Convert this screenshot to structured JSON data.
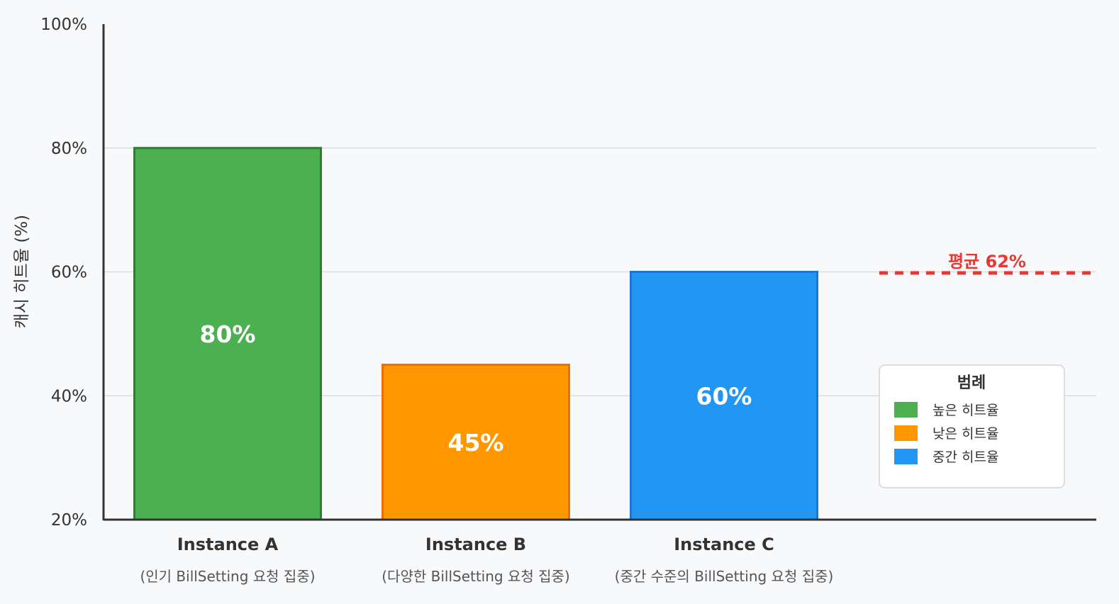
{
  "chart_data": {
    "type": "bar",
    "ylabel": "캐시 히트율 (%)",
    "ylim": [
      20,
      100
    ],
    "y_ticks": [
      20,
      40,
      60,
      80,
      100
    ],
    "y_tick_labels": [
      "20%",
      "40%",
      "60%",
      "80%",
      "100%"
    ],
    "grid": true,
    "categories": [
      "Instance A",
      "Instance B",
      "Instance C"
    ],
    "category_sublabels": [
      "(인기 BillSetting 요청 집중)",
      "(다양한 BillSetting 요청 집중)",
      "(중간 수준의 BillSetting 요청 집중)"
    ],
    "values": [
      80,
      45,
      60
    ],
    "data_labels": [
      "80%",
      "45%",
      "60%"
    ],
    "bar_colors": [
      "#4caf50",
      "#ff9800",
      "#2196f3"
    ],
    "bar_border_colors": [
      "#2e7d32",
      "#ef6c00",
      "#1976d2"
    ],
    "reference_line": {
      "label": "평균 62%",
      "value": 62,
      "color": "#e53935",
      "style": "dashed"
    },
    "legend": {
      "title": "범례",
      "placement": "right",
      "entries": [
        {
          "label": "높은 히트율",
          "color": "#4caf50"
        },
        {
          "label": "낮은 히트율",
          "color": "#ff9800"
        },
        {
          "label": "중간 히트율",
          "color": "#2196f3"
        }
      ]
    }
  }
}
